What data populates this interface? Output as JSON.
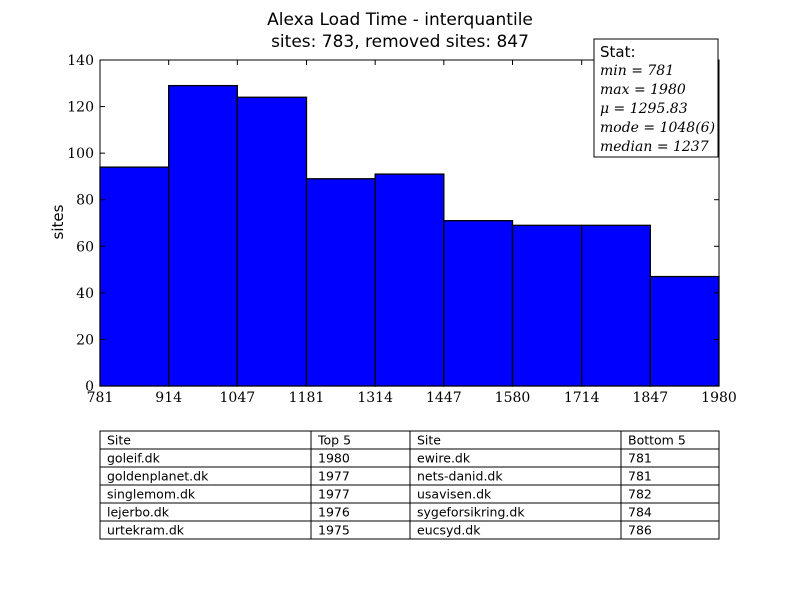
{
  "chart_data": {
    "type": "bar",
    "title": "Alexa Load Time - interquantile",
    "subtitle": "sites: 783, removed sites: 847",
    "xlabel": "",
    "ylabel": "sites",
    "xlim": [
      781,
      1980
    ],
    "ylim": [
      0,
      140
    ],
    "x_ticks": [
      "781",
      "914",
      "1047",
      "1181",
      "1314",
      "1447",
      "1580",
      "1714",
      "1847",
      "1980"
    ],
    "y_ticks": [
      "0",
      "20",
      "40",
      "60",
      "80",
      "100",
      "120",
      "140"
    ],
    "bin_edges": [
      781,
      914,
      1047,
      1181,
      1314,
      1447,
      1580,
      1714,
      1847,
      1980
    ],
    "values": [
      94,
      129,
      124,
      89,
      91,
      71,
      69,
      69,
      47
    ],
    "bar_color": "#0000ff",
    "grid": false,
    "stats": {
      "heading": "Stat:",
      "lines": [
        "min = 781",
        "max = 1980",
        "μ = 1295.83",
        "mode = 1048(6)",
        "median = 1237"
      ]
    }
  },
  "table": {
    "headers": [
      "Site",
      "Top 5",
      "Site",
      "Bottom 5"
    ],
    "rows": [
      [
        "goleif.dk",
        "1980",
        "ewire.dk",
        "781"
      ],
      [
        "goldenplanet.dk",
        "1977",
        "nets-danid.dk",
        "781"
      ],
      [
        "singlemom.dk",
        "1977",
        "usavisen.dk",
        "782"
      ],
      [
        "lejerbo.dk",
        "1976",
        "sygeforsikring.dk",
        "784"
      ],
      [
        "urtekram.dk",
        "1975",
        "eucsyd.dk",
        "786"
      ]
    ]
  }
}
